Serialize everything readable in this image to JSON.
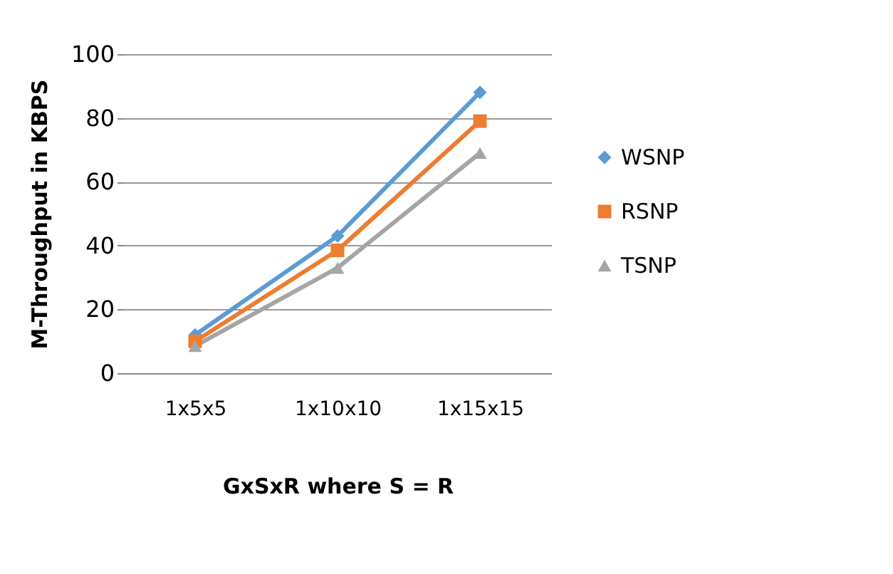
{
  "chart_data": {
    "type": "line",
    "xlabel": "GxSxR where S = R",
    "ylabel": "M-Throughput in KBPS",
    "categories": [
      "1x5x5",
      "1x10x10",
      "1x15x15"
    ],
    "series": [
      {
        "name": "WSNP",
        "color": "#5b9bd5",
        "marker": "diamond",
        "values": [
          12,
          43,
          88
        ]
      },
      {
        "name": "RSNP",
        "color": "#ed7d31",
        "marker": "square",
        "values": [
          10,
          38.5,
          79
        ]
      },
      {
        "name": "TSNP",
        "color": "#a5a5a5",
        "marker": "triangle",
        "values": [
          8.5,
          33,
          69
        ]
      }
    ],
    "ylim": [
      0,
      100
    ],
    "yticks": [
      0,
      20,
      40,
      60,
      80,
      100
    ],
    "grid": "y",
    "legend": "right",
    "line_style": "solid"
  }
}
